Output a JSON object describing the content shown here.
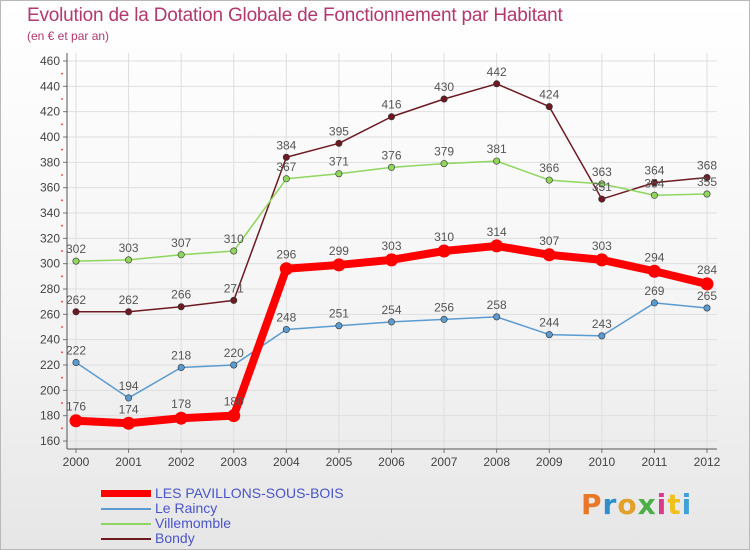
{
  "title": "Evolution de la Dotation Globale de Fonctionnement par Habitant",
  "subtitle": "(en € et par an)",
  "logo": {
    "text": "Proxiti",
    "colors": [
      "#e9772a",
      "#2f8fc9",
      "#e2a22a",
      "#4cae46",
      "#d93b8a",
      "#f0c11c",
      "#3fa1d8"
    ]
  },
  "chart_data": {
    "type": "line",
    "title": "Evolution de la Dotation Globale de Fonctionnement par Habitant",
    "subtitle": "(en € et par an)",
    "x": [
      2000,
      2001,
      2002,
      2003,
      2004,
      2005,
      2006,
      2007,
      2008,
      2009,
      2010,
      2011,
      2012
    ],
    "x_tick_labels": [
      "2000",
      "2001",
      "2002",
      "2003",
      "2004",
      "2005",
      "2006",
      "2007",
      "2008",
      "2009",
      "2010",
      "2011",
      "2012"
    ],
    "ylim": [
      160,
      460
    ],
    "y_ticks": [
      160,
      180,
      200,
      220,
      240,
      260,
      280,
      300,
      320,
      340,
      360,
      380,
      400,
      420,
      440,
      460
    ],
    "grid": true,
    "legend_position": "bottom-left",
    "series": [
      {
        "name": "Bondy",
        "color": "#6d1a22",
        "values": [
          262,
          262,
          266,
          271,
          384,
          395,
          416,
          430,
          442,
          424,
          351,
          364,
          368
        ],
        "labels": [
          "262",
          "262",
          "266",
          "271",
          "384",
          "395",
          "416",
          "430",
          "442",
          "424",
          "351",
          "364",
          "368"
        ]
      },
      {
        "name": "Villemomble",
        "color": "#8fd65e",
        "values": [
          302,
          303,
          307,
          310,
          367,
          371,
          376,
          379,
          381,
          366,
          363,
          354,
          355
        ],
        "labels": [
          "302",
          "303",
          "307",
          "310",
          "367",
          "371",
          "376",
          "379",
          "381",
          "366",
          "363",
          "354",
          "355"
        ]
      },
      {
        "name": "Le Raincy",
        "color": "#5b9bd0",
        "values": [
          222,
          194,
          218,
          220,
          248,
          251,
          254,
          256,
          258,
          244,
          243,
          269,
          265
        ],
        "labels": [
          "222",
          "194",
          "218",
          "220",
          "248",
          "251",
          "254",
          "256",
          "258",
          "244",
          "243",
          "269",
          "265"
        ]
      },
      {
        "name": "LES PAVILLONS-SOUS-BOIS",
        "color": "#ff0000",
        "values": [
          176,
          174,
          178,
          180,
          296,
          299,
          303,
          310,
          314,
          307,
          303,
          294,
          284
        ],
        "labels": [
          "176",
          "174",
          "178",
          "180",
          "296",
          "299",
          "303",
          "310",
          "314",
          "307",
          "303",
          "294",
          "284"
        ]
      }
    ]
  },
  "legend": [
    {
      "name": "LES PAVILLONS-SOUS-BOIS",
      "color": "#ff0000"
    },
    {
      "name": "Le Raincy",
      "color": "#5b9bd0"
    },
    {
      "name": "Villemomble",
      "color": "#8fd65e"
    },
    {
      "name": "Bondy",
      "color": "#6d1a22"
    }
  ]
}
